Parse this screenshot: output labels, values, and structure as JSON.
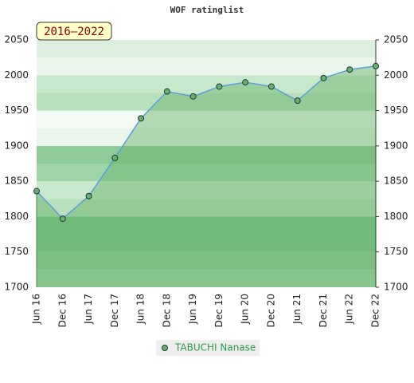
{
  "chart_data": {
    "type": "area",
    "title": "WOF ratinglist",
    "annotation": "2016–2022",
    "categories": [
      "Jun 16",
      "Dec 16",
      "Jun 17",
      "Dec 17",
      "Jun 18",
      "Dec 18",
      "Jun 19",
      "Dec 19",
      "Jun 20",
      "Dec 20",
      "Jun 21",
      "Dec 21",
      "Jun 22",
      "Dec 22"
    ],
    "series": [
      {
        "name": "TABUCHI Nanase",
        "color": "#66b266",
        "values": [
          1836,
          1797,
          1829,
          1883,
          1939,
          1977,
          1970,
          1984,
          1990,
          1984,
          1964,
          1996,
          2008,
          2013
        ]
      }
    ],
    "ylim": [
      1700,
      2050
    ],
    "yticks": [
      1700,
      1750,
      1800,
      1850,
      1900,
      1950,
      2000,
      2050
    ],
    "grid": false,
    "legend": "bottom"
  }
}
